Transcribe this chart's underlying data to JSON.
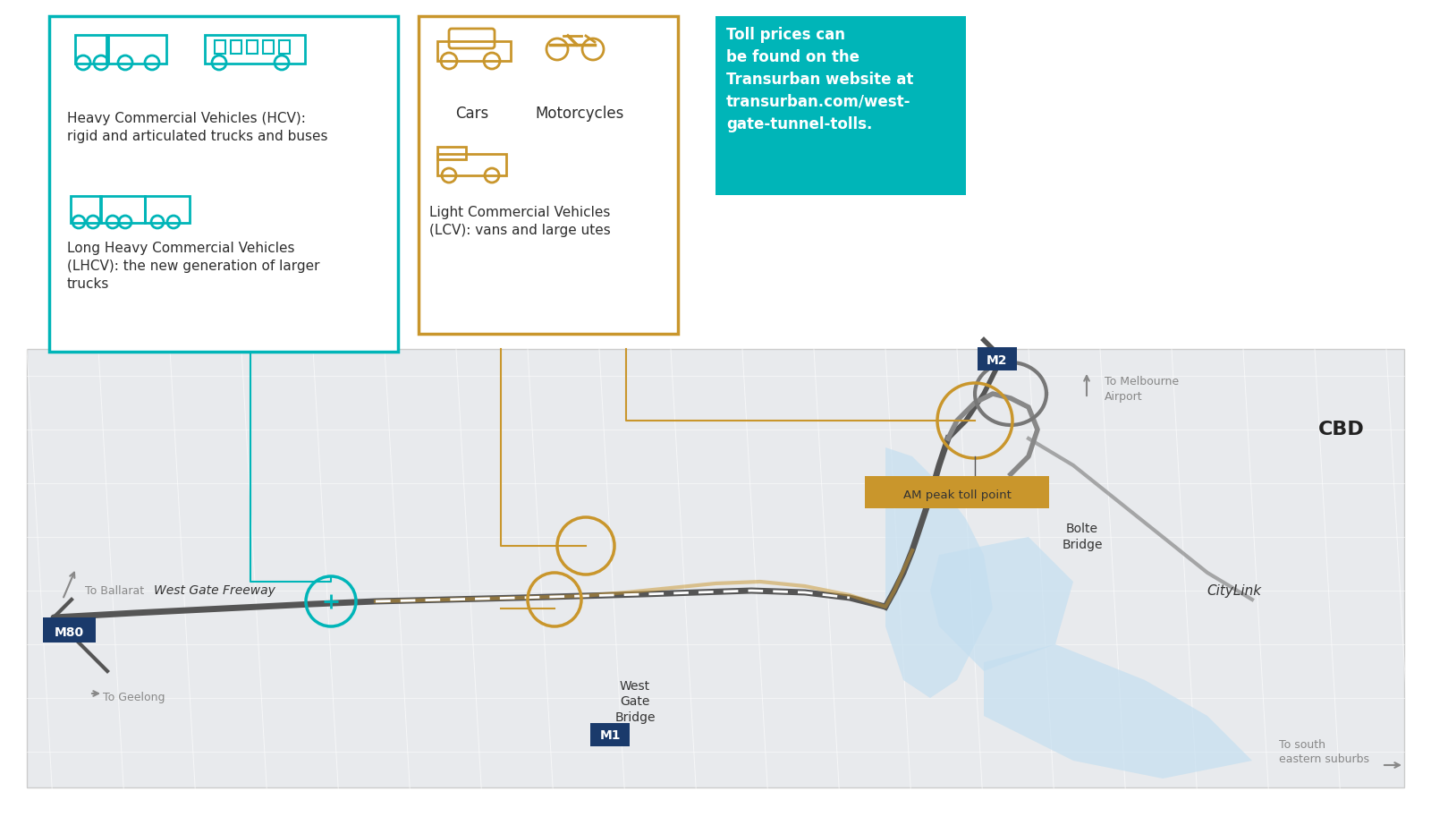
{
  "bg_color": "#f0f0f0",
  "map_bg": "#e8eaed",
  "teal_color": "#00b5b8",
  "gold_color": "#c9962c",
  "dark_navy": "#1a3a6b",
  "text_dark": "#2d2d2d",
  "text_gray": "#888888",
  "info_box_bg": "#00b5b8",
  "am_toll_bg": "#c9962c",
  "hcv_text": "Heavy Commercial Vehicles (HCV):\nrigid and articulated trucks and buses",
  "lhcv_text": "Long Heavy Commercial Vehicles\n(LHCV): the new generation of larger\ntrucks",
  "cars_text": "Cars",
  "motorcycles_text": "Motorcycles",
  "lcv_text": "Light Commercial Vehicles\n(LCV): vans and large utes",
  "info_text": "Toll prices can\nbe found on the\nTransurban website at\ntransurban.com/west-\ngate-tunnel-tolls.",
  "west_gate_freeway": "West Gate Freeway",
  "west_gate_bridge": "West\nGate\nBridge",
  "bolte_bridge": "Bolte\nBridge",
  "citylink": "CityLink",
  "cbd": "CBD",
  "m80_label": "M80",
  "m1_label": "M1",
  "m2_label": "M2",
  "to_ballarat": "To Ballarat",
  "to_geelong": "To Geelong",
  "to_melbourne_airport": "To Melbourne\nAirport",
  "to_south_eastern": "To south\neastern suburbs",
  "am_peak_toll": "AM peak toll point"
}
